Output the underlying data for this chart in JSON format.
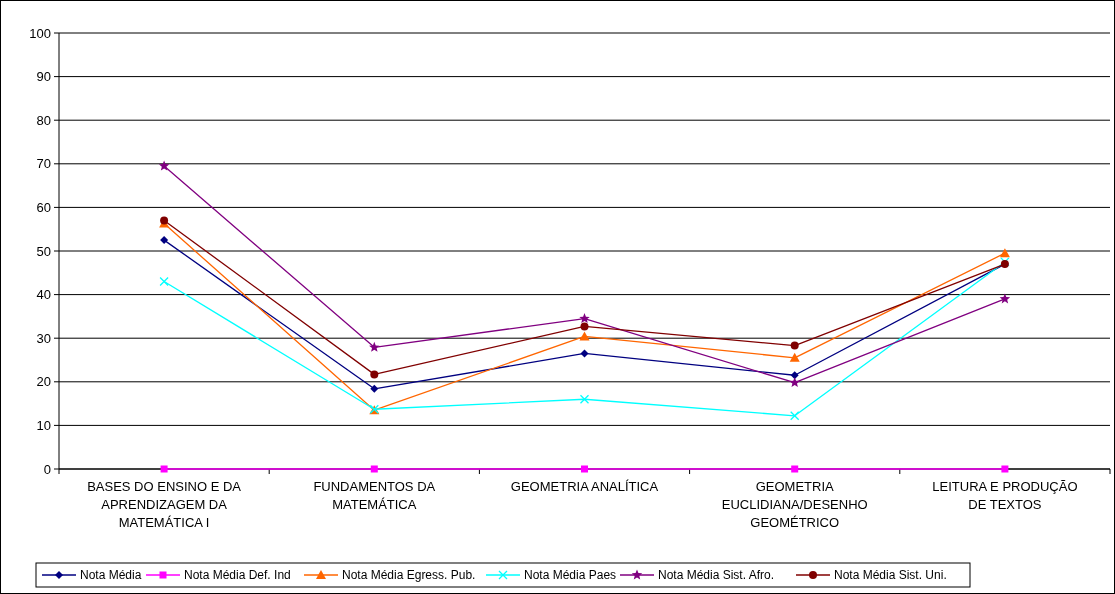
{
  "chart_data": {
    "type": "line",
    "categories": [
      "BASES DO ENSINO E DA APRENDIZAGEM DA MATEMÁTICA I",
      "FUNDAMENTOS DA MATEMÁTICA",
      "GEOMETRIA ANALÍTICA",
      "GEOMETRIA EUCLIDIANA/DESENHO GEOMÉTRICO",
      "LEITURA E PRODUÇÃO DE TEXTOS"
    ],
    "series": [
      {
        "name": "Nota Média",
        "color": "#000080",
        "marker": "diamond",
        "values": [
          52.5,
          18.4,
          26.5,
          21.5,
          47
        ]
      },
      {
        "name": "Nota Média Def. Ind",
        "color": "#ff00ff",
        "marker": "square",
        "values": [
          0,
          0,
          0,
          0,
          0
        ]
      },
      {
        "name": "Nota Média Egress. Pub.",
        "color": "#ff6600",
        "marker": "triangle",
        "values": [
          56.3,
          13.5,
          30.4,
          25.5,
          49.5
        ]
      },
      {
        "name": "Nota Média Paes",
        "color": "#00ffff",
        "marker": "cross",
        "values": [
          43,
          13.7,
          16,
          12.2,
          47.5
        ]
      },
      {
        "name": "Nota Média Sist. Afro.",
        "color": "#800080",
        "marker": "star",
        "values": [
          69.5,
          27.9,
          34.5,
          19.8,
          39
        ]
      },
      {
        "name": "Nota Média Sist. Uni.",
        "color": "#800000",
        "marker": "circle",
        "values": [
          57,
          21.7,
          32.7,
          28.3,
          47
        ]
      }
    ],
    "ylim": [
      0,
      100
    ],
    "yticks": [
      0,
      10,
      20,
      30,
      40,
      50,
      60,
      70,
      80,
      90,
      100
    ],
    "grid": "y",
    "legend": "bottom"
  }
}
